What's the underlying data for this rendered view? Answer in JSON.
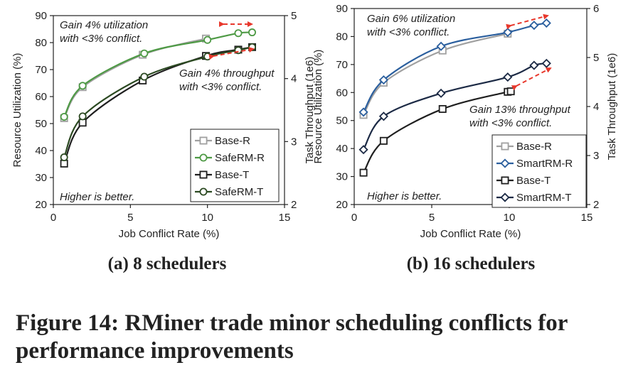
{
  "figure_caption": {
    "line1": "Figure 14: RMiner trade minor scheduling conflicts for",
    "line2": "performance improvements"
  },
  "chart_data": [
    {
      "type": "line",
      "subcaption": "(a) 8 schedulers",
      "xlabel": "Job Conflict Rate (%)",
      "ylabel_left": "Resource Utilization (%)",
      "ylabel_right": "Task Throughput (1e6)",
      "xlim": [
        0,
        15
      ],
      "ylim_left": [
        20,
        90
      ],
      "ylim_right": [
        2,
        5
      ],
      "xticks": [
        "0",
        "5",
        "10",
        "15"
      ],
      "yticks_left": [
        "20",
        "30",
        "40",
        "50",
        "60",
        "70",
        "80",
        "90"
      ],
      "yticks_right": [
        "2",
        "3",
        "4",
        "5"
      ],
      "grid": false,
      "legend_position": "bottom-right",
      "annotations": [
        {
          "lines": [
            "Gain 4% utilization",
            "with <3% conflict."
          ],
          "position": "top-left"
        },
        {
          "lines": [
            "Gain 4% throughput",
            "with <3% conflict."
          ],
          "position": "middle-right"
        },
        {
          "lines": [
            "Higher is better."
          ],
          "position": "bottom-left"
        }
      ],
      "series": [
        {
          "name": "Base-R",
          "axis": "left",
          "marker": "square",
          "color": "#a0a0a0",
          "x": [
            0.7,
            1.9,
            5.8,
            9.9
          ],
          "y": [
            52,
            63.5,
            75.5,
            81.5
          ]
        },
        {
          "name": "SafeRM-R",
          "axis": "left",
          "marker": "circle",
          "color": "#4e9a45",
          "x": [
            0.7,
            1.9,
            5.9,
            10.0,
            12.0,
            12.9
          ],
          "y": [
            52.5,
            64.0,
            76.0,
            81.0,
            83.5,
            83.8
          ]
        },
        {
          "name": "Base-T",
          "axis": "right",
          "marker": "square",
          "color": "#1f1f1f",
          "x": [
            0.7,
            1.9,
            5.8,
            9.9,
            12.0,
            12.9
          ],
          "y": [
            2.65,
            3.3,
            3.97,
            4.36,
            4.46,
            4.5
          ]
        },
        {
          "name": "SafeRM-T",
          "axis": "right",
          "marker": "circle",
          "color": "#2c4a22",
          "x": [
            0.7,
            1.9,
            5.9,
            10.0,
            12.0,
            12.9
          ],
          "y": [
            2.75,
            3.4,
            4.03,
            4.35,
            4.45,
            4.5
          ]
        }
      ]
    },
    {
      "type": "line",
      "subcaption": "(b) 16 schedulers",
      "xlabel": "Job Conflict Rate (%)",
      "ylabel_left": "Resource Utilization (%)",
      "ylabel_right": "Task Throughput (1e6)",
      "xlim": [
        0,
        15
      ],
      "ylim_left": [
        20,
        90
      ],
      "ylim_right": [
        2,
        6
      ],
      "xticks": [
        "0",
        "5",
        "10",
        "15"
      ],
      "yticks_left": [
        "20",
        "30",
        "40",
        "50",
        "60",
        "70",
        "80",
        "90"
      ],
      "yticks_right": [
        "2",
        "3",
        "4",
        "5",
        "6"
      ],
      "grid": false,
      "legend_position": "bottom-right",
      "annotations": [
        {
          "lines": [
            "Gain 6% utilization",
            "with <3% conflict."
          ],
          "position": "top-left"
        },
        {
          "lines": [
            "Gain 13% throughput",
            "with <3% conflict."
          ],
          "position": "middle-right"
        },
        {
          "lines": [
            "Higher is better."
          ],
          "position": "bottom-left"
        }
      ],
      "series": [
        {
          "name": "Base-R",
          "axis": "left",
          "marker": "square",
          "color": "#a0a0a0",
          "x": [
            0.6,
            1.9,
            5.7,
            9.9
          ],
          "y": [
            52,
            63.5,
            75.0,
            81.0
          ]
        },
        {
          "name": "SmartRM-R",
          "axis": "left",
          "marker": "diamond",
          "color": "#2b5f9e",
          "x": [
            0.6,
            1.9,
            5.6,
            9.9,
            11.6,
            12.4
          ],
          "y": [
            53,
            64.5,
            76.5,
            81.5,
            84.0,
            84.8
          ]
        },
        {
          "name": "Base-T",
          "axis": "right",
          "marker": "square",
          "color": "#1f1f1f",
          "x": [
            0.6,
            1.9,
            5.7,
            9.9,
            10.1
          ],
          "y": [
            2.65,
            3.3,
            3.95,
            4.3,
            4.31
          ]
        },
        {
          "name": "SmartRM-T",
          "axis": "right",
          "marker": "diamond",
          "color": "#1c2a45",
          "x": [
            0.6,
            1.9,
            5.6,
            9.9,
            11.6,
            12.4
          ],
          "y": [
            3.12,
            3.8,
            4.27,
            4.6,
            4.84,
            4.88
          ]
        }
      ]
    }
  ]
}
